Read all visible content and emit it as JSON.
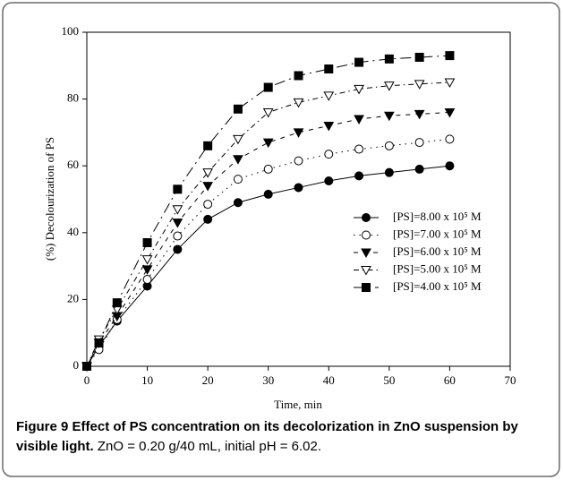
{
  "chart_data": {
    "type": "line",
    "x_label": "Time, min",
    "y_label": "(%) Decolourization of PS",
    "x": [
      0,
      2,
      5,
      10,
      15,
      20,
      25,
      30,
      35,
      40,
      45,
      50,
      55,
      60
    ],
    "series": [
      {
        "name": "[PS]=8.00 x 10⁵ M",
        "color": "#000000",
        "marker": "circle",
        "filled": true,
        "line_style": "solid",
        "values": [
          0,
          6,
          13.5,
          24,
          35,
          44,
          49,
          51.5,
          53.5,
          55.5,
          57,
          58,
          59,
          60
        ]
      },
      {
        "name": "[PS]=7.00 x 10⁵ M",
        "color": "#000000",
        "marker": "circle",
        "filled": false,
        "line_style": "dotted",
        "values": [
          0,
          5,
          14,
          26,
          39,
          48.5,
          56,
          59,
          61.5,
          63.5,
          65,
          66,
          67,
          68
        ]
      },
      {
        "name": "[PS]=6.00 x 10⁵ M",
        "color": "#000000",
        "marker": "triangle-down",
        "filled": true,
        "line_style": "dashed",
        "values": [
          0,
          7,
          15,
          29,
          43,
          54,
          62,
          67,
          70,
          72,
          74,
          75,
          75.5,
          76
        ]
      },
      {
        "name": "[PS]=5.00 x 10⁵ M",
        "color": "#000000",
        "marker": "triangle-down",
        "filled": false,
        "line_style": "dashdot",
        "values": [
          0,
          8,
          17,
          32,
          47,
          58,
          68,
          76,
          79,
          81,
          83,
          84,
          84.5,
          85
        ]
      },
      {
        "name": "[PS]=4.00 x 10⁵ M",
        "color": "#000000",
        "marker": "square",
        "filled": true,
        "line_style": "longdash",
        "values": [
          0,
          7,
          19,
          37,
          53,
          66,
          77,
          83.5,
          87,
          89,
          91,
          92,
          92.5,
          93
        ]
      }
    ],
    "xlim": [
      0,
      70
    ],
    "xticks": [
      0,
      10,
      20,
      30,
      40,
      50,
      60,
      70
    ],
    "ylim": [
      0,
      100
    ],
    "yticks": [
      0,
      20,
      40,
      60,
      80,
      100
    ],
    "legend": "lower right"
  },
  "caption": {
    "title": "Figure 9 Effect of PS concentration on its decolorization in ZnO suspension by visible light.",
    "text": "ZnO = 0.20 g/40 mL, initial pH = 6.02."
  }
}
